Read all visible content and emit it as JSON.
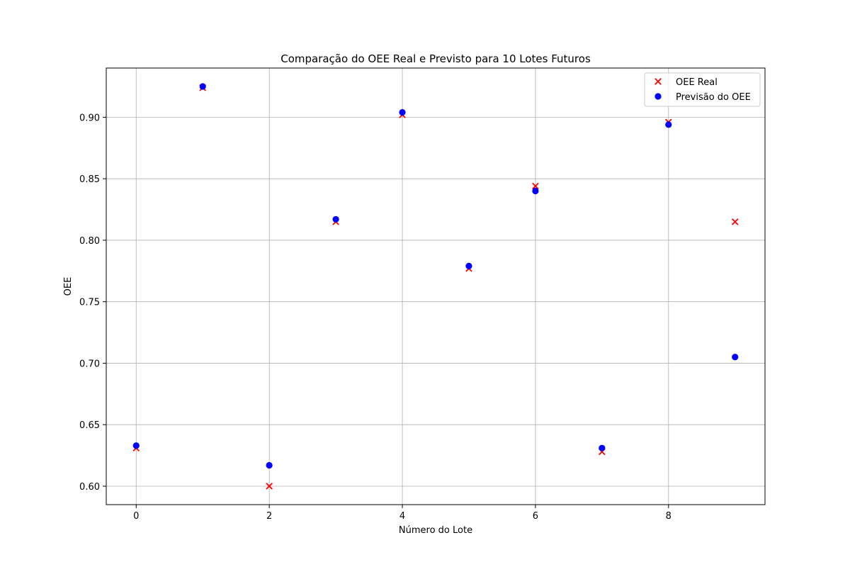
{
  "chart_data": {
    "type": "scatter",
    "title": "Comparação do OEE Real e Previsto para 10 Lotes Futuros",
    "xlabel": "Número do Lote",
    "ylabel": "OEE",
    "xlim": [
      -0.45,
      9.45
    ],
    "ylim": [
      0.585,
      0.94
    ],
    "xticks": [
      0,
      2,
      4,
      6,
      8
    ],
    "yticks": [
      0.6,
      0.65,
      0.7,
      0.75,
      0.8,
      0.85,
      0.9
    ],
    "grid": true,
    "legend_position": "top-right",
    "x": [
      0,
      1,
      2,
      3,
      4,
      5,
      6,
      7,
      8,
      9
    ],
    "series": [
      {
        "name": "OEE Real",
        "marker": "x",
        "color": "#ff0000",
        "values": [
          0.631,
          0.924,
          0.6,
          0.815,
          0.902,
          0.777,
          0.844,
          0.628,
          0.896,
          0.815
        ]
      },
      {
        "name": "Previsão do OEE",
        "marker": "o",
        "color": "#0000ff",
        "values": [
          0.633,
          0.925,
          0.617,
          0.817,
          0.904,
          0.779,
          0.84,
          0.631,
          0.894,
          0.705
        ]
      }
    ]
  }
}
